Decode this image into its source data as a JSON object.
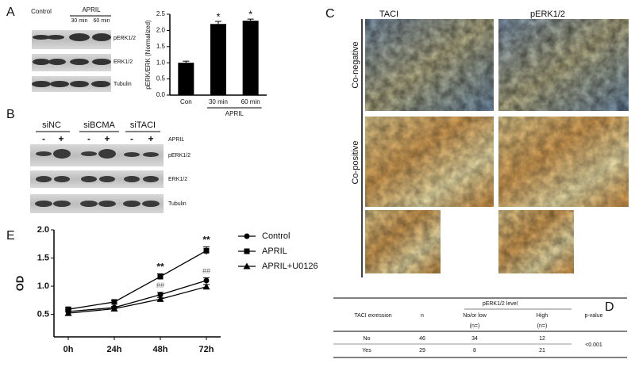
{
  "panel_labels": [
    "A",
    "B",
    "C",
    "D",
    "E"
  ],
  "blot_A": {
    "groups": [
      "Control",
      "APRIL"
    ],
    "times": [
      "30 min",
      "60 min"
    ],
    "bands": [
      "pERK1/2",
      "ERK1/2",
      "Tubulin"
    ]
  },
  "blot_B": {
    "groups": [
      "siNC",
      "siBCMA",
      "siTACI"
    ],
    "signs": [
      "-",
      "+",
      "-",
      "+",
      "-",
      "+"
    ],
    "treatment": "APRIL",
    "bands": [
      "pERK1/2",
      "ERK1/2",
      "Tubulin"
    ]
  },
  "ihc_C": {
    "columns": [
      "TACI",
      "pERK1/2"
    ],
    "rows": [
      "Co-negative",
      "Co-positive"
    ]
  },
  "table": {
    "header": {
      "expression": "TACI exression",
      "n": "n",
      "level": "pERK1/2  level",
      "low": "No/or low",
      "low_n": "(n=)",
      "high": "High",
      "high_n": "(n=)",
      "p": "p-value"
    },
    "rows": [
      [
        "No",
        "46",
        "34",
        "12"
      ],
      [
        "Yes",
        "29",
        "8",
        "21"
      ]
    ],
    "p_value": "<0.001"
  },
  "chart_data": [
    {
      "type": "bar",
      "ylabel": "pERK/ERK (Normalized)",
      "categories": [
        "Con",
        "30 min",
        "60 min"
      ],
      "values": [
        1.0,
        2.2,
        2.3
      ],
      "errors": [
        0.05,
        0.08,
        0.05
      ],
      "color": "#000000",
      "ylim": [
        0,
        2.5
      ],
      "yticks": [
        {
          "value": 0,
          "label": "0.0"
        },
        {
          "value": 0.5,
          "label": "0.5"
        },
        {
          "value": 1,
          "label": "1.0"
        },
        {
          "value": 1.5,
          "label": "1.5"
        },
        {
          "value": 2,
          "label": "2.0"
        },
        {
          "value": 2.5,
          "label": "2.5"
        }
      ],
      "group_label": {
        "text": "APRIL",
        "categories": [
          "30 min",
          "60 min"
        ]
      },
      "annotations": [
        {
          "text": "*",
          "x": "30 min"
        },
        {
          "text": "*",
          "x": "60 min"
        }
      ]
    },
    {
      "type": "line",
      "ylabel": "OD",
      "categories": [
        "0h",
        "24h",
        "48h",
        "72h"
      ],
      "series": [
        {
          "name": "Control",
          "color": "#000000",
          "marker": "circle",
          "values": [
            0.55,
            0.62,
            0.85,
            1.1
          ],
          "errors": [
            0.03,
            0.02,
            0.04,
            0.05
          ]
        },
        {
          "name": "APRIL",
          "color": "#000000",
          "marker": "square",
          "values": [
            0.59,
            0.72,
            1.17,
            1.63
          ],
          "errors": [
            0.03,
            0.03,
            0.05,
            0.07
          ]
        },
        {
          "name": "APRIL+U0126",
          "color": "#000000",
          "marker": "triangle",
          "values": [
            0.52,
            0.6,
            0.77,
            0.99
          ],
          "errors": [
            0.03,
            0.02,
            0.03,
            0.04
          ]
        }
      ],
      "ylim": [
        0.1,
        2.0
      ],
      "yticks": [
        0.5,
        {
          "value": 1,
          "label": "1.0"
        },
        1.5,
        {
          "value": 2,
          "label": "2.0"
        }
      ],
      "annotations": [
        {
          "text": "**",
          "x": "48h",
          "series": "APRIL"
        },
        {
          "text": "**",
          "x": "72h",
          "series": "APRIL"
        },
        {
          "text": "##",
          "x": "48h",
          "series": "Control"
        },
        {
          "text": "##",
          "x": "72h",
          "series": "Control"
        }
      ]
    }
  ]
}
